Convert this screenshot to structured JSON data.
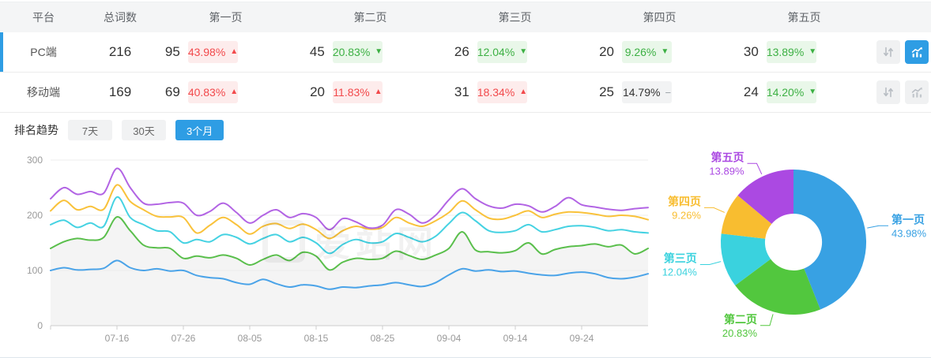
{
  "colors": {
    "accent": "#2e9de4",
    "up_text": "#f2494b",
    "up_bg": "#fdecec",
    "down_text": "#3cb043",
    "down_bg": "#e9f7e9",
    "flat_bg": "#f2f3f4"
  },
  "watermark": "爱站网",
  "table": {
    "columns": [
      "平台",
      "总词数",
      "第一页",
      "第二页",
      "第三页",
      "第四页",
      "第五页"
    ],
    "rows": [
      {
        "platform": "PC端",
        "selected": true,
        "total": "216",
        "chart_active": true,
        "pages": [
          {
            "count": "95",
            "pct": "43.98%",
            "dir": "up",
            "tone": "red"
          },
          {
            "count": "45",
            "pct": "20.83%",
            "dir": "down",
            "tone": "green"
          },
          {
            "count": "26",
            "pct": "12.04%",
            "dir": "down",
            "tone": "green"
          },
          {
            "count": "20",
            "pct": "9.26%",
            "dir": "down",
            "tone": "green"
          },
          {
            "count": "30",
            "pct": "13.89%",
            "dir": "down",
            "tone": "green"
          }
        ]
      },
      {
        "platform": "移动端",
        "selected": false,
        "total": "169",
        "chart_active": false,
        "pages": [
          {
            "count": "69",
            "pct": "40.83%",
            "dir": "up",
            "tone": "red"
          },
          {
            "count": "20",
            "pct": "11.83%",
            "dir": "up",
            "tone": "red"
          },
          {
            "count": "31",
            "pct": "18.34%",
            "dir": "up",
            "tone": "red"
          },
          {
            "count": "25",
            "pct": "14.79%",
            "dir": "flat",
            "tone": "gray"
          },
          {
            "count": "24",
            "pct": "14.20%",
            "dir": "down",
            "tone": "green"
          }
        ]
      }
    ]
  },
  "trend": {
    "title": "排名趋势",
    "tabs": [
      {
        "label": "7天",
        "active": false
      },
      {
        "label": "30天",
        "active": false
      },
      {
        "label": "3个月",
        "active": true
      }
    ]
  },
  "chart_data": [
    {
      "type": "line",
      "title": "排名趋势（3个月）",
      "ylim": [
        0,
        300
      ],
      "yticks": [
        0,
        100,
        200,
        300
      ],
      "grid": true,
      "x_total_days": 90,
      "step_days": 2,
      "x_tick_days": [
        10,
        20,
        30,
        40,
        50,
        60,
        70,
        80
      ],
      "x_tick_labels": [
        "07-16",
        "07-26",
        "08-05",
        "08-15",
        "08-25",
        "09-04",
        "09-14",
        "09-24"
      ],
      "series": [
        {
          "name": "第一页",
          "color": "#4aa3e8",
          "area": false,
          "values": [
            100,
            105,
            101,
            102,
            104,
            118,
            105,
            100,
            103,
            99,
            100,
            91,
            87,
            85,
            78,
            75,
            84,
            76,
            70,
            74,
            72,
            66,
            70,
            69,
            72,
            74,
            78,
            74,
            71,
            78,
            92,
            103,
            99,
            101,
            98,
            99,
            95,
            92,
            91,
            95,
            97,
            94,
            87,
            85,
            88,
            94
          ]
        },
        {
          "name": "第二页",
          "color": "#5abf4c",
          "area": true,
          "area_color": "#f4f4f4",
          "values": [
            140,
            152,
            158,
            155,
            160,
            197,
            172,
            146,
            141,
            140,
            122,
            126,
            123,
            128,
            122,
            110,
            120,
            128,
            118,
            133,
            126,
            101,
            115,
            122,
            120,
            122,
            135,
            127,
            120,
            128,
            140,
            170,
            137,
            134,
            132,
            136,
            150,
            130,
            138,
            143,
            145,
            148,
            143,
            146,
            130,
            140
          ]
        },
        {
          "name": "第三页",
          "color": "#45d2e2",
          "area": false,
          "values": [
            183,
            191,
            178,
            186,
            180,
            233,
            196,
            183,
            172,
            170,
            150,
            156,
            152,
            165,
            160,
            148,
            158,
            165,
            152,
            160,
            150,
            131,
            147,
            156,
            150,
            152,
            167,
            160,
            152,
            162,
            185,
            205,
            190,
            172,
            169,
            172,
            183,
            170,
            174,
            180,
            181,
            178,
            172,
            174,
            170,
            168
          ]
        },
        {
          "name": "第四页",
          "color": "#f9c23b",
          "area": false,
          "values": [
            208,
            227,
            210,
            216,
            211,
            255,
            225,
            210,
            198,
            197,
            196,
            168,
            182,
            196,
            183,
            166,
            180,
            185,
            176,
            184,
            174,
            158,
            172,
            180,
            175,
            178,
            196,
            186,
            180,
            190,
            205,
            226,
            210,
            195,
            193,
            200,
            208,
            196,
            202,
            206,
            205,
            202,
            198,
            200,
            198,
            192
          ]
        },
        {
          "name": "第五页",
          "color": "#b264e4",
          "area": false,
          "values": [
            230,
            250,
            238,
            243,
            240,
            285,
            250,
            222,
            220,
            223,
            222,
            200,
            207,
            222,
            205,
            186,
            200,
            210,
            196,
            203,
            196,
            174,
            194,
            188,
            177,
            182,
            210,
            202,
            186,
            200,
            228,
            248,
            230,
            217,
            213,
            220,
            217,
            206,
            216,
            232,
            219,
            215,
            211,
            209,
            212,
            214
          ]
        }
      ]
    },
    {
      "type": "pie",
      "donut": true,
      "labels": [
        "第一页",
        "第二页",
        "第三页",
        "第四页",
        "第五页"
      ],
      "values": [
        43.98,
        20.83,
        12.04,
        9.26,
        13.89
      ],
      "display_pcts": [
        "43.98%",
        "20.83%",
        "12.04%",
        "9.26%",
        "13.89%"
      ],
      "colors": [
        "#38a1e3",
        "#52c73e",
        "#3ad2de",
        "#f8bd30",
        "#ab49e2"
      ]
    }
  ]
}
